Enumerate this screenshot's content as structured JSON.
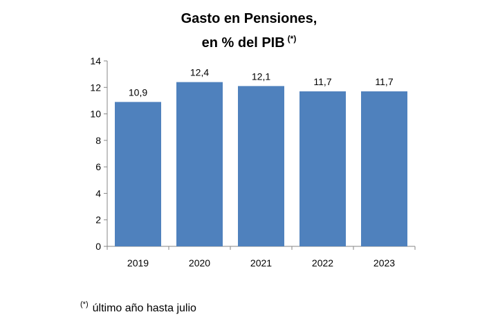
{
  "chart_data": {
    "type": "bar",
    "title": "Gasto en Pensiones,",
    "subtitle": "en % del PIB",
    "title_marker": "(*)",
    "categories": [
      "2019",
      "2020",
      "2021",
      "2022",
      "2023"
    ],
    "values": [
      10.9,
      12.4,
      12.1,
      11.7,
      11.7
    ],
    "data_labels": [
      "10,9",
      "12,4",
      "12,1",
      "11,7",
      "11,7"
    ],
    "ylim": [
      0,
      14
    ],
    "yticks": [
      0,
      2,
      4,
      6,
      8,
      10,
      12,
      14
    ],
    "xlabel": "",
    "ylabel": "",
    "grid": false,
    "legend": "none",
    "bar_color": "#4f81bd",
    "footnote_marker": "(*)",
    "footnote": "último año hasta julio"
  }
}
